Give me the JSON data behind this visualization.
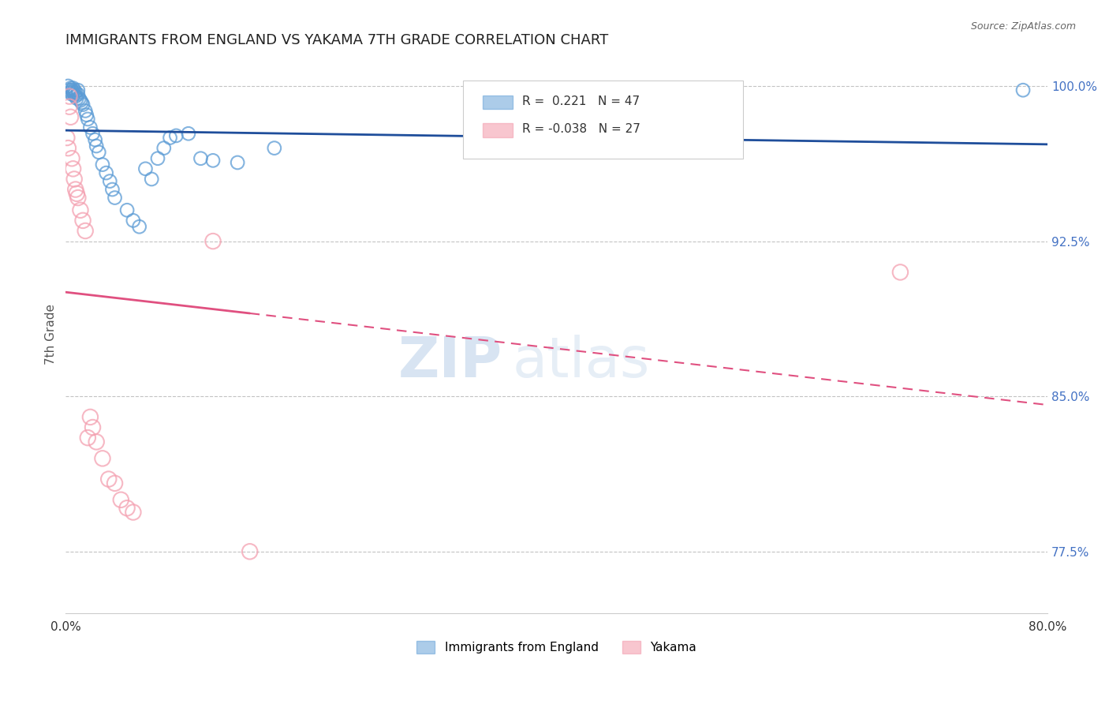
{
  "title": "IMMIGRANTS FROM ENGLAND VS YAKAMA 7TH GRADE CORRELATION CHART",
  "source": "Source: ZipAtlas.com",
  "xlabel": "",
  "ylabel": "7th Grade",
  "xlim": [
    0.0,
    0.8
  ],
  "ylim": [
    0.745,
    1.015
  ],
  "yticks": [
    1.0,
    0.925,
    0.85,
    0.775
  ],
  "ytick_labels": [
    "100.0%",
    "92.5%",
    "85.0%",
    "77.5%"
  ],
  "xticks": [
    0.0,
    0.1,
    0.2,
    0.3,
    0.4,
    0.5,
    0.6,
    0.7,
    0.8
  ],
  "xtick_labels": [
    "0.0%",
    "",
    "",
    "",
    "",
    "",
    "",
    "",
    "80.0%"
  ],
  "legend_blue_r": "0.221",
  "legend_blue_n": "47",
  "legend_pink_r": "-0.038",
  "legend_pink_n": "27",
  "blue_color": "#5b9bd5",
  "pink_color": "#f4a0b0",
  "trend_blue_color": "#1f4e9b",
  "trend_pink_color": "#e05080",
  "blue_x": [
    0.002,
    0.003,
    0.004,
    0.004,
    0.005,
    0.005,
    0.006,
    0.006,
    0.007,
    0.007,
    0.008,
    0.008,
    0.009,
    0.01,
    0.01,
    0.011,
    0.012,
    0.013,
    0.014,
    0.016,
    0.017,
    0.018,
    0.02,
    0.022,
    0.024,
    0.025,
    0.027,
    0.03,
    0.033,
    0.036,
    0.038,
    0.04,
    0.05,
    0.055,
    0.06,
    0.065,
    0.07,
    0.075,
    0.08,
    0.085,
    0.09,
    0.1,
    0.11,
    0.12,
    0.14,
    0.17,
    0.78
  ],
  "blue_y": [
    1.0,
    0.998,
    0.997,
    0.999,
    0.996,
    0.998,
    0.997,
    0.999,
    0.996,
    0.998,
    0.995,
    0.997,
    0.994,
    0.996,
    0.998,
    0.994,
    0.993,
    0.992,
    0.991,
    0.988,
    0.986,
    0.984,
    0.98,
    0.977,
    0.974,
    0.971,
    0.968,
    0.962,
    0.958,
    0.954,
    0.95,
    0.946,
    0.94,
    0.935,
    0.932,
    0.96,
    0.955,
    0.965,
    0.97,
    0.975,
    0.976,
    0.977,
    0.965,
    0.964,
    0.963,
    0.97,
    0.998
  ],
  "pink_x": [
    0.001,
    0.002,
    0.003,
    0.003,
    0.004,
    0.005,
    0.006,
    0.007,
    0.008,
    0.009,
    0.01,
    0.012,
    0.014,
    0.016,
    0.018,
    0.02,
    0.022,
    0.025,
    0.03,
    0.035,
    0.04,
    0.045,
    0.05,
    0.055,
    0.12,
    0.15,
    0.68
  ],
  "pink_y": [
    0.975,
    0.97,
    0.995,
    0.99,
    0.985,
    0.965,
    0.96,
    0.955,
    0.95,
    0.948,
    0.946,
    0.94,
    0.935,
    0.93,
    0.83,
    0.84,
    0.835,
    0.828,
    0.82,
    0.81,
    0.808,
    0.8,
    0.796,
    0.794,
    0.925,
    0.775,
    0.91
  ],
  "blue_marker_size": 12,
  "pink_marker_size": 14
}
